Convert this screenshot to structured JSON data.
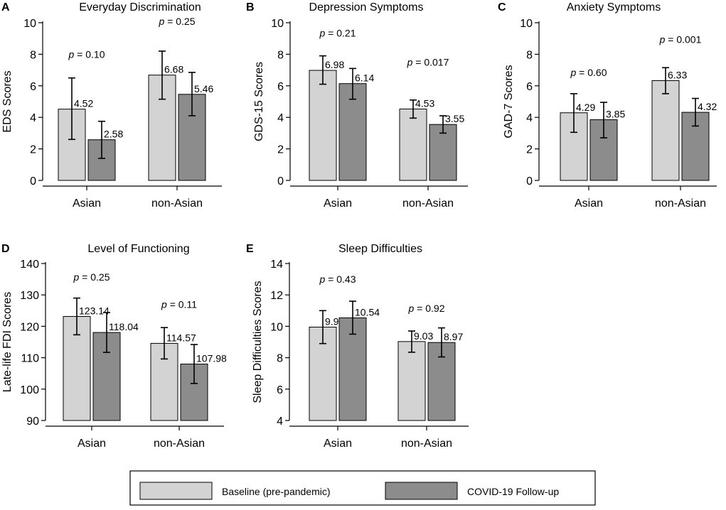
{
  "chart_data": [
    {
      "type": "bar",
      "panel": "A",
      "title": "Everyday Discrimination",
      "xlabel": "",
      "ylabel": "EDS Scores",
      "ylim": [
        0,
        10
      ],
      "yticks": [
        "0",
        "2",
        "4",
        "6",
        "8",
        "10"
      ],
      "categories": [
        "Asian",
        "non-Asian"
      ],
      "series": [
        {
          "name": "Baseline (pre-pandemic)",
          "values": [
            4.52,
            6.68
          ],
          "labels": [
            "4.52",
            "6.68"
          ],
          "ci_low": [
            2.6,
            5.15
          ],
          "ci_high": [
            6.5,
            8.2
          ]
        },
        {
          "name": "COVID-19 Follow-up",
          "values": [
            2.58,
            5.46
          ],
          "labels": [
            "2.58",
            "5.46"
          ],
          "ci_low": [
            1.4,
            4.1
          ],
          "ci_high": [
            3.75,
            6.85
          ]
        }
      ],
      "p_values": [
        "0.10",
        "0.25"
      ],
      "p_positions": [
        8.0,
        10.1
      ]
    },
    {
      "type": "bar",
      "panel": "B",
      "title": "Depression Symptoms",
      "xlabel": "",
      "ylabel": "GDS-15 Scores",
      "ylim": [
        0,
        10
      ],
      "yticks": [
        "0",
        "2",
        "4",
        "6",
        "8",
        "10"
      ],
      "categories": [
        "Asian",
        "non-Asian"
      ],
      "series": [
        {
          "name": "Baseline (pre-pandemic)",
          "values": [
            6.98,
            4.53
          ],
          "labels": [
            "6.98",
            "4.53"
          ],
          "ci_low": [
            6.1,
            3.95
          ],
          "ci_high": [
            7.9,
            5.1
          ]
        },
        {
          "name": "COVID-19 Follow-up",
          "values": [
            6.14,
            3.55
          ],
          "labels": [
            "6.14",
            "3.55"
          ],
          "ci_low": [
            5.15,
            3.0
          ],
          "ci_high": [
            7.1,
            4.1
          ]
        }
      ],
      "p_values": [
        "0.21",
        "0.017"
      ],
      "p_positions": [
        9.35,
        7.5
      ]
    },
    {
      "type": "bar",
      "panel": "C",
      "title": "Anxiety Symptoms",
      "xlabel": "",
      "ylabel": "GAD-7 Scores",
      "ylim": [
        0,
        10
      ],
      "yticks": [
        "0",
        "2",
        "4",
        "6",
        "8",
        "10"
      ],
      "categories": [
        "Asian",
        "non-Asian"
      ],
      "series": [
        {
          "name": "Baseline (pre-pandemic)",
          "values": [
            4.29,
            6.33
          ],
          "labels": [
            "4.29",
            "6.33"
          ],
          "ci_low": [
            3.05,
            5.5
          ],
          "ci_high": [
            5.5,
            7.15
          ]
        },
        {
          "name": "COVID-19 Follow-up",
          "values": [
            3.85,
            4.32
          ],
          "labels": [
            "3.85",
            "4.32"
          ],
          "ci_low": [
            2.7,
            3.45
          ],
          "ci_high": [
            4.95,
            5.2
          ]
        }
      ],
      "p_values": [
        "0.60",
        "0.001"
      ],
      "p_positions": [
        6.85,
        8.95
      ]
    },
    {
      "type": "bar",
      "panel": "D",
      "title": "Level of Functioning",
      "xlabel": "",
      "ylabel": "Late-life FDI Scores",
      "ylim": [
        90,
        140
      ],
      "yticks": [
        "90",
        "100",
        "110",
        "120",
        "130",
        "140"
      ],
      "categories": [
        "Asian",
        "non-Asian"
      ],
      "series": [
        {
          "name": "Baseline (pre-pandemic)",
          "values": [
            123.14,
            114.57
          ],
          "labels": [
            "123.14",
            "114.57"
          ],
          "ci_low": [
            117.3,
            109.6
          ],
          "ci_high": [
            129.0,
            119.6
          ]
        },
        {
          "name": "COVID-19 Follow-up",
          "values": [
            118.04,
            107.98
          ],
          "labels": [
            "118.04",
            "107.98"
          ],
          "ci_low": [
            111.7,
            101.8
          ],
          "ci_high": [
            124.4,
            114.2
          ]
        }
      ],
      "p_values": [
        "0.25",
        "0.11"
      ],
      "p_positions": [
        135.7,
        127.0
      ]
    },
    {
      "type": "bar",
      "panel": "E",
      "title": "Sleep Difficulties",
      "xlabel": "",
      "ylabel": "Sleep Difficulties Scores",
      "ylim": [
        4,
        14
      ],
      "yticks": [
        "4",
        "6",
        "8",
        "10",
        "12",
        "14"
      ],
      "categories": [
        "Asian",
        "non-Asian"
      ],
      "series": [
        {
          "name": "Baseline (pre-pandemic)",
          "values": [
            9.95,
            9.03
          ],
          "labels": [
            "9.95",
            "9.03"
          ],
          "ci_low": [
            8.9,
            8.35
          ],
          "ci_high": [
            11.0,
            9.7
          ]
        },
        {
          "name": "COVID-19 Follow-up",
          "values": [
            10.54,
            8.97
          ],
          "labels": [
            "10.54",
            "8.97"
          ],
          "ci_low": [
            9.5,
            8.05
          ],
          "ci_high": [
            11.6,
            9.9
          ]
        }
      ],
      "p_values": [
        "0.43",
        "0.92"
      ],
      "p_positions": [
        13.0,
        11.15
      ]
    }
  ],
  "figure": {
    "p_prefix": "p",
    "p_equals": " = ",
    "series_colors": [
      "#d3d3d3",
      "#8c8c8c"
    ]
  },
  "legend": {
    "items": [
      {
        "label": "Baseline (pre-pandemic)",
        "color": "#d3d3d3"
      },
      {
        "label": "COVID-19 Follow-up",
        "color": "#8c8c8c"
      }
    ]
  }
}
